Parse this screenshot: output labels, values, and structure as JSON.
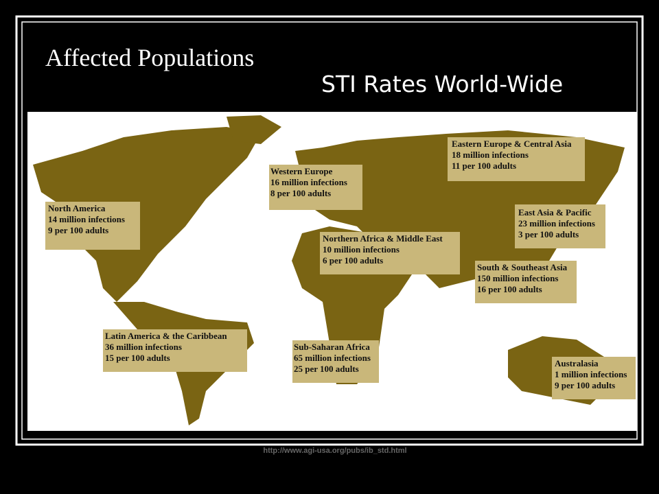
{
  "title": "Affected Populations",
  "subtitle": "STI Rates World-Wide",
  "regions": [
    {
      "name": "North America",
      "infections": "14 million infections",
      "rate": "9 per 100 adults"
    },
    {
      "name": "Western Europe",
      "infections": "16 million infections",
      "rate": "8 per 100 adults"
    },
    {
      "name": "Eastern Europe & Central Asia",
      "infections": "18 million infections",
      "rate": "11 per 100 adults"
    },
    {
      "name": "East Asia & Pacific",
      "infections": "23 million infections",
      "rate": "3 per 100 adults"
    },
    {
      "name": "Northern Africa & Middle East",
      "infections": "10 million infections",
      "rate": "6 per 100 adults"
    },
    {
      "name": "South & Southeast Asia",
      "infections": "150 million infections",
      "rate": "16 per 100 adults"
    },
    {
      "name": "Latin America & the Caribbean",
      "infections": "36 million infections",
      "rate": "15 per 100 adults"
    },
    {
      "name": "Sub-Saharan Africa",
      "infections": "65 million infections",
      "rate": "25 per 100 adults"
    },
    {
      "name": "Australasia",
      "infections": "1 million infections",
      "rate": "9 per 100 adults"
    }
  ],
  "source": "http://www.agi-usa.org/pubs/ib_std.html"
}
